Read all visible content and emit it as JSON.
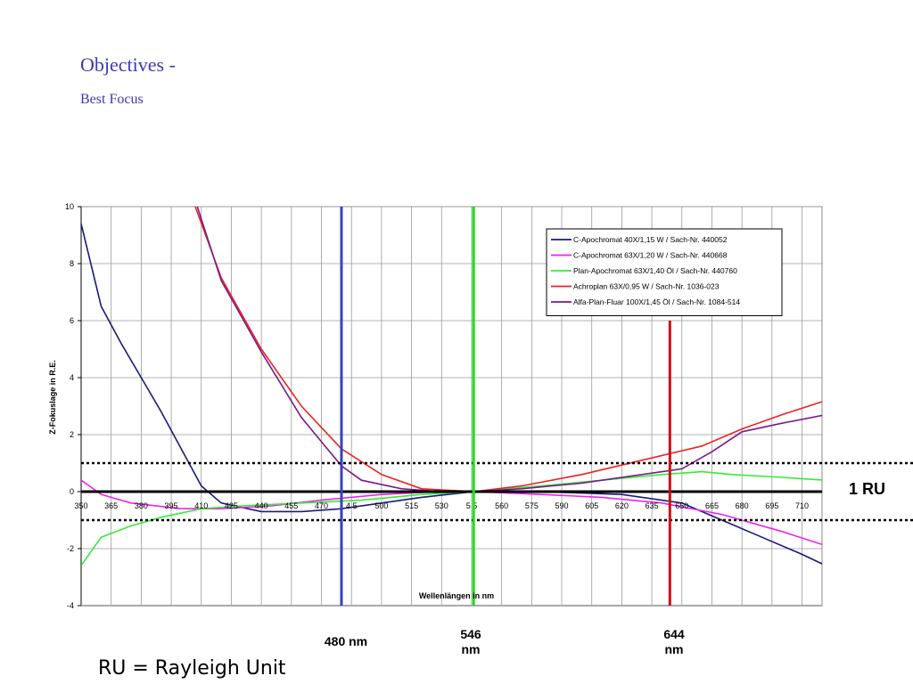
{
  "slide": {
    "title": "Objectives -",
    "subtitle": "Best Focus",
    "footer_note": "RU = Rayleigh Unit"
  },
  "annotations": {
    "ru_label": "1 RU",
    "ru_lines": [
      1,
      -1
    ],
    "markers": [
      {
        "x": 480,
        "line1": "480 nm",
        "line2": "",
        "color": "#3344bb"
      },
      {
        "x": 546,
        "line1": "546",
        "line2": "nm",
        "color": "#22dd22"
      },
      {
        "x": 644,
        "line1": "644",
        "line2": "nm",
        "color": "#cc1111"
      }
    ]
  },
  "chart_data": {
    "type": "line",
    "xlabel": "Wellenlängen in nm",
    "ylabel": "Z-Fokuslage in R.E.",
    "xlim": [
      350,
      720
    ],
    "ylim": [
      -4,
      10
    ],
    "x_ticks": [
      350,
      365,
      380,
      395,
      410,
      425,
      440,
      455,
      470,
      485,
      500,
      515,
      530,
      545,
      560,
      575,
      590,
      605,
      620,
      635,
      650,
      665,
      680,
      695,
      710
    ],
    "x_tick_labels": [
      "350",
      "365",
      "380",
      "395",
      "410",
      "425",
      "440",
      "455",
      "470",
      "4 5",
      "500",
      "515",
      "530",
      "5 5",
      "560",
      "575",
      "590",
      "605",
      "620",
      "635",
      "650",
      "665",
      "680",
      "695",
      "710"
    ],
    "y_ticks": [
      -4,
      -2,
      0,
      2,
      4,
      6,
      8,
      10
    ],
    "grid": true,
    "legend_position": "top-right",
    "series": [
      {
        "name": "C-Apochromat 40X/1,15 W / Sach-Nr. 440052",
        "color": "#1a1a7a",
        "points": [
          [
            350,
            9.4
          ],
          [
            360,
            6.5
          ],
          [
            370,
            5.2
          ],
          [
            380,
            4.0
          ],
          [
            390,
            2.8
          ],
          [
            400,
            1.5
          ],
          [
            410,
            0.2
          ],
          [
            420,
            -0.4
          ],
          [
            440,
            -0.7
          ],
          [
            460,
            -0.7
          ],
          [
            480,
            -0.6
          ],
          [
            500,
            -0.4
          ],
          [
            520,
            -0.2
          ],
          [
            546,
            0.0
          ],
          [
            580,
            0.0
          ],
          [
            620,
            -0.1
          ],
          [
            650,
            -0.4
          ],
          [
            670,
            -1.0
          ],
          [
            690,
            -1.6
          ],
          [
            710,
            -2.2
          ],
          [
            722,
            -2.6
          ]
        ]
      },
      {
        "name": "C-Apochromat 63X/1,20 W / Sach-Nr. 440668",
        "color": "#ee22ee",
        "points": [
          [
            350,
            0.4
          ],
          [
            360,
            -0.1
          ],
          [
            375,
            -0.4
          ],
          [
            400,
            -0.6
          ],
          [
            420,
            -0.6
          ],
          [
            445,
            -0.5
          ],
          [
            470,
            -0.3
          ],
          [
            500,
            -0.1
          ],
          [
            530,
            0.0
          ],
          [
            546,
            0.0
          ],
          [
            580,
            -0.1
          ],
          [
            610,
            -0.2
          ],
          [
            640,
            -0.4
          ],
          [
            670,
            -0.8
          ],
          [
            700,
            -1.4
          ],
          [
            722,
            -1.9
          ]
        ]
      },
      {
        "name": "Plan-Apochromat 63X/1,40 Öl / Sach-Nr. 440760",
        "color": "#33ee33",
        "points": [
          [
            350,
            -2.6
          ],
          [
            360,
            -1.6
          ],
          [
            375,
            -1.2
          ],
          [
            390,
            -0.9
          ],
          [
            410,
            -0.6
          ],
          [
            430,
            -0.5
          ],
          [
            460,
            -0.4
          ],
          [
            490,
            -0.3
          ],
          [
            520,
            -0.1
          ],
          [
            546,
            0.0
          ],
          [
            580,
            0.2
          ],
          [
            610,
            0.4
          ],
          [
            640,
            0.6
          ],
          [
            660,
            0.7
          ],
          [
            675,
            0.6
          ],
          [
            700,
            0.5
          ],
          [
            722,
            0.4
          ]
        ]
      },
      {
        "name": "Achroplan 63X/0,95 W / Sach-Nr. 1036-023",
        "color": "#ee2222",
        "points": [
          [
            407,
            10.0
          ],
          [
            420,
            7.5
          ],
          [
            440,
            5.0
          ],
          [
            460,
            3.0
          ],
          [
            480,
            1.5
          ],
          [
            500,
            0.6
          ],
          [
            520,
            0.1
          ],
          [
            546,
            0.0
          ],
          [
            570,
            0.2
          ],
          [
            600,
            0.6
          ],
          [
            630,
            1.1
          ],
          [
            660,
            1.6
          ],
          [
            680,
            2.2
          ],
          [
            700,
            2.7
          ],
          [
            722,
            3.2
          ]
        ]
      },
      {
        "name": "Alfa-Plan-Fluar 100X/1,45 Öl / Sach-Nr. 1084-514",
        "color": "#7a1a8a",
        "points": [
          [
            408,
            10.0
          ],
          [
            420,
            7.4
          ],
          [
            440,
            4.9
          ],
          [
            460,
            2.6
          ],
          [
            480,
            0.9
          ],
          [
            490,
            0.4
          ],
          [
            510,
            0.1
          ],
          [
            530,
            0.0
          ],
          [
            546,
            0.0
          ],
          [
            570,
            0.1
          ],
          [
            600,
            0.3
          ],
          [
            630,
            0.6
          ],
          [
            650,
            0.8
          ],
          [
            665,
            1.4
          ],
          [
            680,
            2.1
          ],
          [
            700,
            2.4
          ],
          [
            722,
            2.7
          ]
        ]
      }
    ]
  }
}
